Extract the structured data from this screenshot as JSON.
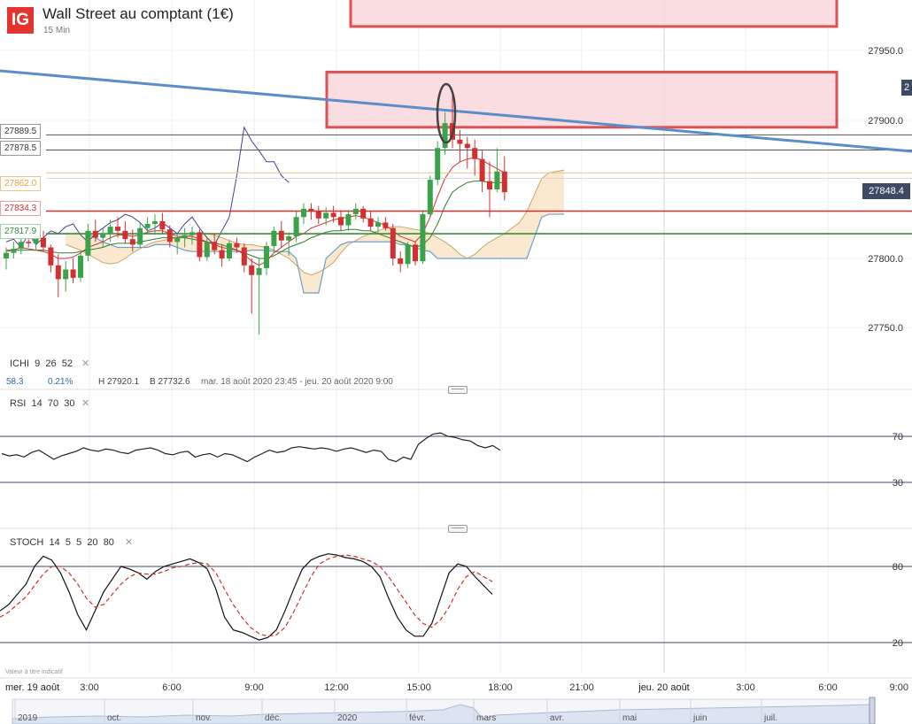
{
  "header": {
    "logo": "IG",
    "title": "Wall Street au comptant (1€)",
    "subtitle": "15 Min"
  },
  "price_axis": {
    "labels": [
      "27950.0",
      "27900.0",
      "27800.0",
      "27750.0"
    ]
  },
  "current_price": {
    "value": "27848.4",
    "color": "#3e4a63",
    "cut_label": "2"
  },
  "level_tags": [
    {
      "label": "27889.5",
      "color": "#333333"
    },
    {
      "label": "27878.5",
      "color": "#333333"
    },
    {
      "label": "27862.0",
      "color": "#e8a040"
    },
    {
      "label": "27834.3",
      "color": "#d32f2f"
    },
    {
      "label": "27817.9",
      "color": "#388e3c"
    }
  ],
  "indicators": {
    "ichi": {
      "label": "ICHI",
      "params": [
        "9",
        "26",
        "52"
      ],
      "close_icon": "close-icon"
    },
    "rsi": {
      "label": "RSI",
      "params": [
        "14",
        "70",
        "30"
      ],
      "close_icon": "close-icon",
      "levels": [
        "70",
        "30"
      ]
    },
    "stoch": {
      "label": "STOCH",
      "params": [
        "14",
        "5",
        "5",
        "20",
        "80"
      ],
      "close_icon": "close-icon",
      "levels": [
        "80",
        "20"
      ]
    }
  },
  "stats": {
    "value": "58.3",
    "change": "0.21%",
    "high": "H 27920.1",
    "low": "B 27732.6",
    "range": "mar. 18 août 2020 23:45 - jeu. 20 août 2020 9:00"
  },
  "disclaimer": "Valeur à titre indicatif",
  "time_axis": [
    "mer. 19 août",
    "3:00",
    "6:00",
    "9:00",
    "12:00",
    "15:00",
    "18:00",
    "21:00",
    "jeu. 20 août",
    "3:00",
    "6:00",
    "9:00"
  ],
  "navigator_labels": [
    "2019",
    "oct.",
    "nov.",
    "déc.",
    "2020",
    "févr.",
    "mars",
    "avr.",
    "mai",
    "juin",
    "juil."
  ],
  "colors": {
    "up": "#3aa34a",
    "down": "#d32f2f",
    "trendline": "#5b8ec9",
    "zone_fill": "#f8d7db",
    "zone_border": "#e05050",
    "cloud": "#fbe9cf",
    "tenkan": "#d32f2f",
    "kijun": "#2e7d32",
    "chikou": "#4b3f8f",
    "rsi": "#222222",
    "stoch_k": "#111111",
    "stoch_d": "#d32f2f"
  },
  "chart_data": {
    "type": "candlestick",
    "title": "Wall Street au comptant (1€)",
    "interval": "15 Min",
    "ylim": [
      27740,
      27975
    ],
    "x_labels": [
      "mer. 19 août",
      "3:00",
      "6:00",
      "9:00",
      "12:00",
      "15:00",
      "18:00",
      "21:00",
      "jeu. 20 août",
      "3:00",
      "6:00",
      "9:00"
    ],
    "candles": [
      [
        27800,
        27808,
        27792,
        27804
      ],
      [
        27804,
        27812,
        27800,
        27807
      ],
      [
        27807,
        27815,
        27803,
        27812
      ],
      [
        27812,
        27818,
        27808,
        27811
      ],
      [
        27811,
        27817,
        27806,
        27815
      ],
      [
        27815,
        27820,
        27805,
        27808
      ],
      [
        27808,
        27810,
        27790,
        27795
      ],
      [
        27795,
        27803,
        27772,
        27785
      ],
      [
        27785,
        27798,
        27776,
        27792
      ],
      [
        27792,
        27800,
        27782,
        27786
      ],
      [
        27786,
        27805,
        27783,
        27802
      ],
      [
        27802,
        27825,
        27798,
        27820
      ],
      [
        27820,
        27828,
        27812,
        27815
      ],
      [
        27815,
        27822,
        27808,
        27818
      ],
      [
        27818,
        27828,
        27812,
        27823
      ],
      [
        27823,
        27830,
        27815,
        27820
      ],
      [
        27820,
        27827,
        27811,
        27814
      ],
      [
        27814,
        27821,
        27805,
        27810
      ],
      [
        27810,
        27826,
        27808,
        27822
      ],
      [
        27822,
        27830,
        27818,
        27825
      ],
      [
        27825,
        27832,
        27818,
        27827
      ],
      [
        27827,
        27833,
        27818,
        27821
      ],
      [
        27821,
        27824,
        27808,
        27812
      ],
      [
        27812,
        27818,
        27803,
        27815
      ],
      [
        27815,
        27822,
        27808,
        27817
      ],
      [
        27817,
        27823,
        27810,
        27819
      ],
      [
        27819,
        27821,
        27798,
        27801
      ],
      [
        27801,
        27815,
        27798,
        27812
      ],
      [
        27812,
        27818,
        27803,
        27806
      ],
      [
        27806,
        27810,
        27794,
        27800
      ],
      [
        27800,
        27813,
        27798,
        27811
      ],
      [
        27811,
        27815,
        27804,
        27808
      ],
      [
        27808,
        27811,
        27790,
        27795
      ],
      [
        27795,
        27800,
        27760,
        27788
      ],
      [
        27788,
        27800,
        27745,
        27793
      ],
      [
        27793,
        27812,
        27788,
        27809
      ],
      [
        27809,
        27823,
        27805,
        27820
      ],
      [
        27820,
        27827,
        27808,
        27813
      ],
      [
        27813,
        27819,
        27802,
        27816
      ],
      [
        27816,
        27835,
        27812,
        27830
      ],
      [
        27830,
        27840,
        27825,
        27836
      ],
      [
        27836,
        27840,
        27828,
        27834
      ],
      [
        27834,
        27838,
        27825,
        27829
      ],
      [
        27829,
        27837,
        27824,
        27833
      ],
      [
        27833,
        27838,
        27826,
        27830
      ],
      [
        27830,
        27835,
        27820,
        27824
      ],
      [
        27824,
        27835,
        27820,
        27832
      ],
      [
        27832,
        27840,
        27828,
        27836
      ],
      [
        27836,
        27838,
        27826,
        27829
      ],
      [
        27829,
        27834,
        27820,
        27823
      ],
      [
        27823,
        27830,
        27818,
        27826
      ],
      [
        27826,
        27830,
        27820,
        27822
      ],
      [
        27822,
        27825,
        27795,
        27800
      ],
      [
        27800,
        27805,
        27790,
        27796
      ],
      [
        27796,
        27812,
        27793,
        27810
      ],
      [
        27810,
        27812,
        27795,
        27798
      ],
      [
        27798,
        27835,
        27796,
        27832
      ],
      [
        27832,
        27860,
        27830,
        27857
      ],
      [
        27857,
        27885,
        27853,
        27880
      ],
      [
        27880,
        27906,
        27875,
        27898
      ],
      [
        27898,
        27920,
        27880,
        27886
      ],
      [
        27886,
        27893,
        27870,
        27883
      ],
      [
        27883,
        27888,
        27865,
        27880
      ],
      [
        27880,
        27886,
        27860,
        27872
      ],
      [
        27872,
        27878,
        27848,
        27856
      ],
      [
        27856,
        27870,
        27830,
        27850
      ],
      [
        27850,
        27880,
        27848,
        27863
      ],
      [
        27863,
        27874,
        27842,
        27848
      ]
    ],
    "tenkan": [
      27805,
      27806,
      27808,
      27807,
      27806,
      27805,
      27803,
      27800,
      27800,
      27801,
      27804,
      27808,
      27810,
      27812,
      27815,
      27817,
      27817,
      27816,
      27817,
      27819,
      27820,
      27820,
      27818,
      27816,
      27816,
      27816,
      27814,
      27812,
      27810,
      27808,
      27807,
      27806,
      27803,
      27798,
      27795,
      27798,
      27804,
      27808,
      27812,
      27816,
      27818,
      27822,
      27824,
      27826,
      27828,
      27829,
      27830,
      27831,
      27830,
      27828,
      27826,
      27824,
      27820,
      27816,
      27814,
      27812,
      27818,
      27830,
      27845,
      27858,
      27866,
      27870,
      27872,
      27873,
      27871,
      27868,
      27865,
      27862
    ],
    "kijun": [
      27806,
      27806,
      27806,
      27806,
      27806,
      27806,
      27805,
      27804,
      27804,
      27804,
      27805,
      27806,
      27807,
      27808,
      27810,
      27811,
      27811,
      27811,
      27812,
      27813,
      27814,
      27815,
      27815,
      27815,
      27815,
      27814,
      27813,
      27812,
      27811,
      27810,
      27808,
      27806,
      27804,
      27802,
      27800,
      27800,
      27802,
      27805,
      27808,
      27810,
      27812,
      27815,
      27817,
      27819,
      27820,
      27820,
      27821,
      27821,
      27820,
      27820,
      27818,
      27816,
      27814,
      27812,
      27810,
      27808,
      27810,
      27815,
      27825,
      27838,
      27848,
      27852,
      27855,
      27856,
      27856,
      27855,
      27855,
      27855
    ],
    "chikou": [
      27812,
      27814,
      27808,
      27818,
      27810,
      27815,
      27820,
      27818,
      27823,
      27825,
      27817,
      27812,
      27818,
      27822,
      27826,
      27828,
      27832,
      27830,
      27826,
      27820,
      27822,
      27826,
      27822,
      27818,
      27825,
      27830,
      27822,
      27815,
      27810,
      27820,
      27830,
      27860,
      27895,
      27885,
      27878,
      27870,
      27870,
      27860,
      27855
    ],
    "senkou_a": [
      27810,
      27808,
      27806,
      27803,
      27800,
      27797,
      27796,
      27797,
      27800,
      27804,
      27807,
      27810,
      27812,
      27813,
      27814,
      27815,
      27816,
      27817,
      27818,
      27818,
      27817,
      27815,
      27813,
      27811,
      27810,
      27810,
      27809,
      27808,
      27806,
      27803,
      27800,
      27795,
      27790,
      27788,
      27790,
      27793,
      27797,
      27804,
      27810,
      27813,
      27816,
      27818,
      27820,
      27822,
      27823,
      27823,
      27822,
      27821,
      27820,
      27818,
      27815,
      27812,
      27808,
      27803,
      27800,
      27803,
      27808,
      27812,
      27815,
      27818,
      27822,
      27826,
      27834,
      27846,
      27858,
      27862,
      27863,
      27864
    ],
    "senkou_b": [
      27818,
      27818,
      27818,
      27818,
      27815,
      27812,
      27810,
      27808,
      27808,
      27808,
      27808,
      27808,
      27810,
      27810,
      27810,
      27808,
      27806,
      27805,
      27805,
      27805,
      27805,
      27805,
      27805,
      27805,
      27805,
      27806,
      27806,
      27806,
      27805,
      27805,
      27805,
      27800,
      27775,
      27775,
      27775,
      27800,
      27805,
      27810,
      27812,
      27812,
      27812,
      27812,
      27812,
      27812,
      27812,
      27810,
      27810,
      27808,
      27806,
      27805,
      27800,
      27800,
      27800,
      27800,
      27800,
      27800,
      27800,
      27800,
      27800,
      27800,
      27800,
      27800,
      27800,
      27815,
      27830,
      27832,
      27832,
      27832
    ],
    "rsi": [
      55,
      53,
      54,
      52,
      56,
      58,
      54,
      50,
      53,
      55,
      57,
      60,
      58,
      57,
      59,
      58,
      56,
      55,
      58,
      59,
      60,
      58,
      55,
      54,
      56,
      57,
      52,
      54,
      55,
      52,
      55,
      54,
      51,
      48,
      52,
      55,
      58,
      56,
      57,
      60,
      61,
      60,
      59,
      60,
      59,
      57,
      59,
      60,
      58,
      56,
      58,
      57,
      50,
      48,
      52,
      50,
      63,
      68,
      72,
      73,
      70,
      69,
      67,
      66,
      62,
      60,
      62,
      58
    ],
    "stoch_k": [
      45,
      50,
      58,
      66,
      80,
      88,
      85,
      75,
      60,
      42,
      30,
      45,
      60,
      70,
      80,
      78,
      75,
      70,
      76,
      80,
      82,
      84,
      86,
      83,
      78,
      62,
      40,
      30,
      28,
      25,
      22,
      24,
      30,
      45,
      62,
      78,
      85,
      88,
      90,
      89,
      87,
      86,
      84,
      80,
      72,
      55,
      40,
      30,
      25,
      25,
      35,
      55,
      75,
      82,
      80,
      72,
      65,
      58
    ],
    "stoch_d": [
      40,
      44,
      50,
      56,
      65,
      74,
      80,
      80,
      75,
      66,
      55,
      48,
      50,
      58,
      66,
      72,
      75,
      74,
      74,
      76,
      79,
      80,
      82,
      83,
      82,
      75,
      62,
      50,
      40,
      32,
      27,
      25,
      26,
      32,
      44,
      58,
      72,
      82,
      86,
      88,
      89,
      88,
      86,
      84,
      80,
      72,
      62,
      52,
      42,
      35,
      32,
      38,
      48,
      62,
      72,
      76,
      72,
      68
    ],
    "resistance_zones": [
      [
        27895,
        27935
      ],
      [
        27968,
        27990
      ]
    ],
    "trendline": [
      27930,
      27878
    ]
  }
}
